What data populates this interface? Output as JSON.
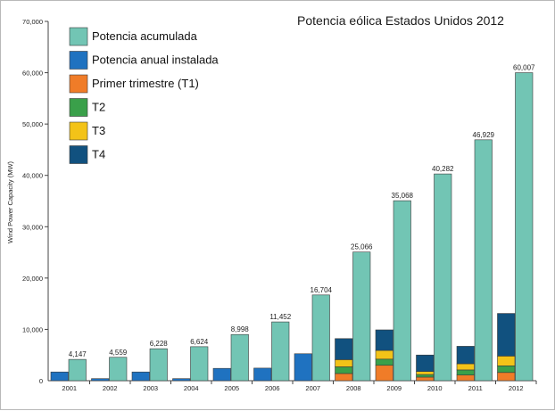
{
  "chart_data": {
    "type": "bar",
    "title": "Potencia eólica Estados Unidos 2012",
    "ylabel": "Wind Power Capacity (MW)",
    "xlabel": "",
    "ylim": [
      0,
      70000
    ],
    "y_ticks": [
      "0",
      "10,000",
      "20,000",
      "30,000",
      "40,000",
      "50,000",
      "60,000",
      "70,000"
    ],
    "y_tick_values": [
      0,
      10000,
      20000,
      30000,
      40000,
      50000,
      60000,
      70000
    ],
    "grid": false,
    "legend_position": "top-left",
    "categories": [
      "2001",
      "2002",
      "2003",
      "2004",
      "2005",
      "2006",
      "2007",
      "2008",
      "2009",
      "2010",
      "2011",
      "2012"
    ],
    "cumulative": {
      "name": "Potencia acumulada",
      "color": "#72c5b4",
      "values": [
        4147,
        4559,
        6228,
        6624,
        8998,
        11452,
        16704,
        25066,
        35068,
        40282,
        46929,
        60007
      ],
      "labels": [
        "4,147",
        "4,559",
        "6,228",
        "6,624",
        "8,998",
        "11,452",
        "16,704",
        "25,066",
        "35,068",
        "40,282",
        "46,929",
        "60,007"
      ]
    },
    "annual": {
      "name": "Potencia anual instalada",
      "color": "#1f72c0",
      "values": [
        1700,
        400,
        1700,
        400,
        2400,
        2450,
        5250,
        null,
        null,
        null,
        null,
        null
      ]
    },
    "quarters": [
      {
        "name": "Primer trimestre (T1)",
        "color": "#f07c28",
        "values": [
          null,
          null,
          null,
          null,
          null,
          null,
          null,
          1400,
          3000,
          700,
          1100,
          1600
        ]
      },
      {
        "name": "T2",
        "color": "#3aa04a",
        "values": [
          null,
          null,
          null,
          null,
          null,
          null,
          null,
          1300,
          1200,
          500,
          1000,
          1300
        ]
      },
      {
        "name": "T3",
        "color": "#f3c318",
        "values": [
          null,
          null,
          null,
          null,
          null,
          null,
          null,
          1400,
          1700,
          600,
          1200,
          1900
        ]
      },
      {
        "name": "T4",
        "color": "#11517f",
        "values": [
          null,
          null,
          null,
          null,
          null,
          null,
          null,
          4100,
          4000,
          3200,
          3400,
          8300
        ]
      }
    ]
  }
}
